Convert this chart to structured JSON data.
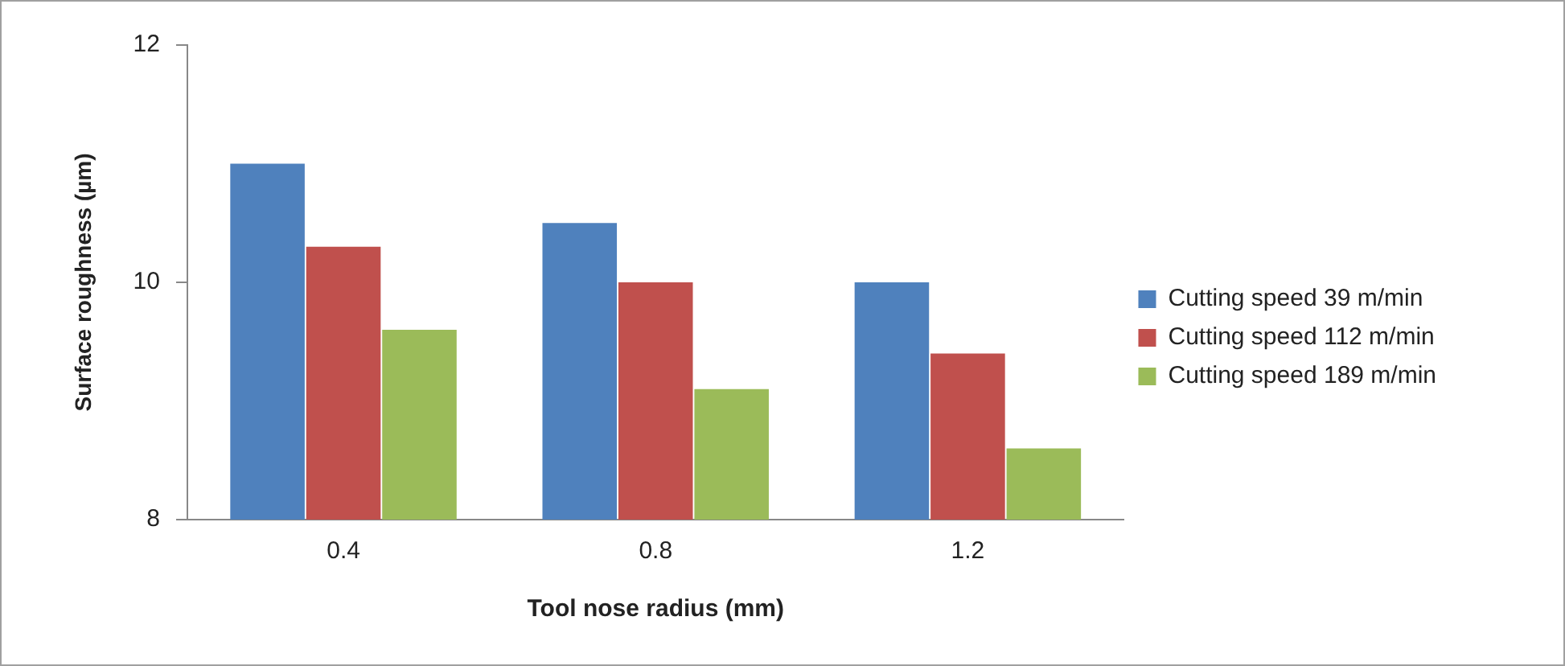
{
  "chart_data": {
    "type": "bar",
    "xlabel": "Tool nose radius (mm)",
    "ylabel": "Surface roughness (µm)",
    "categories": [
      "0.4",
      "0.8",
      "1.2"
    ],
    "series": [
      {
        "name": "Cutting speed 39 m/min",
        "color": "#4f81bd",
        "values": [
          11.0,
          10.5,
          10.0
        ]
      },
      {
        "name": "Cutting speed 112 m/min",
        "color": "#c0504d",
        "values": [
          10.3,
          10.0,
          9.4
        ]
      },
      {
        "name": "Cutting speed 189 m/min",
        "color": "#9bbb59",
        "values": [
          9.6,
          9.1,
          8.6
        ]
      }
    ],
    "ylim": [
      8,
      12
    ],
    "yticks": [
      8,
      10,
      12
    ],
    "grid": false,
    "legend": "right"
  }
}
